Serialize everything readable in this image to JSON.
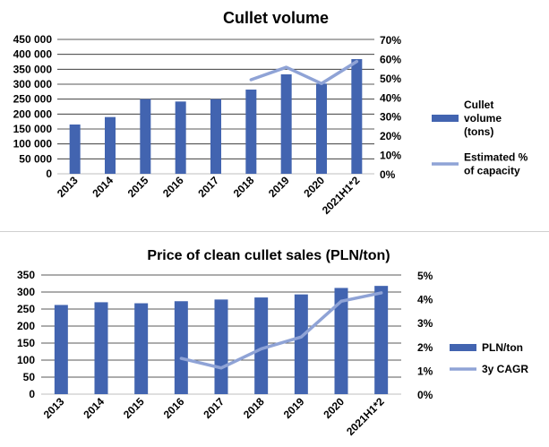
{
  "chart_data": [
    {
      "type": "bar",
      "title": "Cullet volume",
      "categories": [
        "2013",
        "2014",
        "2015",
        "2016",
        "2017",
        "2018",
        "2019",
        "2020",
        "2021H1*2"
      ],
      "y_ticks": [
        "0",
        "50 000",
        "100 000",
        "150 000",
        "200 000",
        "250 000",
        "300 000",
        "350 000",
        "400 000",
        "450 000"
      ],
      "y2_ticks": [
        "0%",
        "10%",
        "20%",
        "30%",
        "40%",
        "50%",
        "60%",
        "70%"
      ],
      "ylim": [
        0,
        450000
      ],
      "y2lim": [
        0,
        0.7
      ],
      "grid": true,
      "legend_position": "right",
      "series": [
        {
          "name": "Cullet volume (tons)",
          "legend_lines": [
            "Cullet",
            "volume",
            "(tons)"
          ],
          "type": "bar",
          "axis": "left",
          "color": "#4264b0",
          "values": [
            165000,
            190000,
            250000,
            242000,
            250000,
            282000,
            333000,
            302000,
            384000
          ]
        },
        {
          "name": "Estimated % of capacity",
          "legend_lines": [
            "Estimated %",
            "of capacity"
          ],
          "type": "line",
          "axis": "right",
          "color": "#8fa3d6",
          "values": [
            null,
            null,
            null,
            null,
            null,
            0.49,
            0.555,
            0.47,
            0.585
          ]
        }
      ]
    },
    {
      "type": "bar",
      "title": "Price of clean cullet sales (PLN/ton)",
      "categories": [
        "2013",
        "2014",
        "2015",
        "2016",
        "2017",
        "2018",
        "2019",
        "2020",
        "2021H1*2"
      ],
      "y_ticks": [
        "0",
        "50",
        "100",
        "150",
        "200",
        "250",
        "300",
        "350"
      ],
      "y2_ticks": [
        "0%",
        "1%",
        "2%",
        "3%",
        "4%",
        "5%"
      ],
      "ylim": [
        0,
        350
      ],
      "y2lim": [
        0,
        0.05
      ],
      "grid": true,
      "legend_position": "right",
      "series": [
        {
          "name": "PLN/ton",
          "legend_lines": [
            "PLN/ton"
          ],
          "type": "bar",
          "axis": "left",
          "color": "#4264b0",
          "values": [
            262,
            270,
            267,
            273,
            278,
            284,
            293,
            312,
            318
          ]
        },
        {
          "name": "3y CAGR",
          "legend_lines": [
            "3y CAGR"
          ],
          "type": "line",
          "axis": "right",
          "color": "#8fa3d6",
          "values": [
            null,
            null,
            null,
            0.015,
            0.011,
            0.019,
            0.024,
            0.039,
            0.0425
          ]
        }
      ]
    }
  ]
}
